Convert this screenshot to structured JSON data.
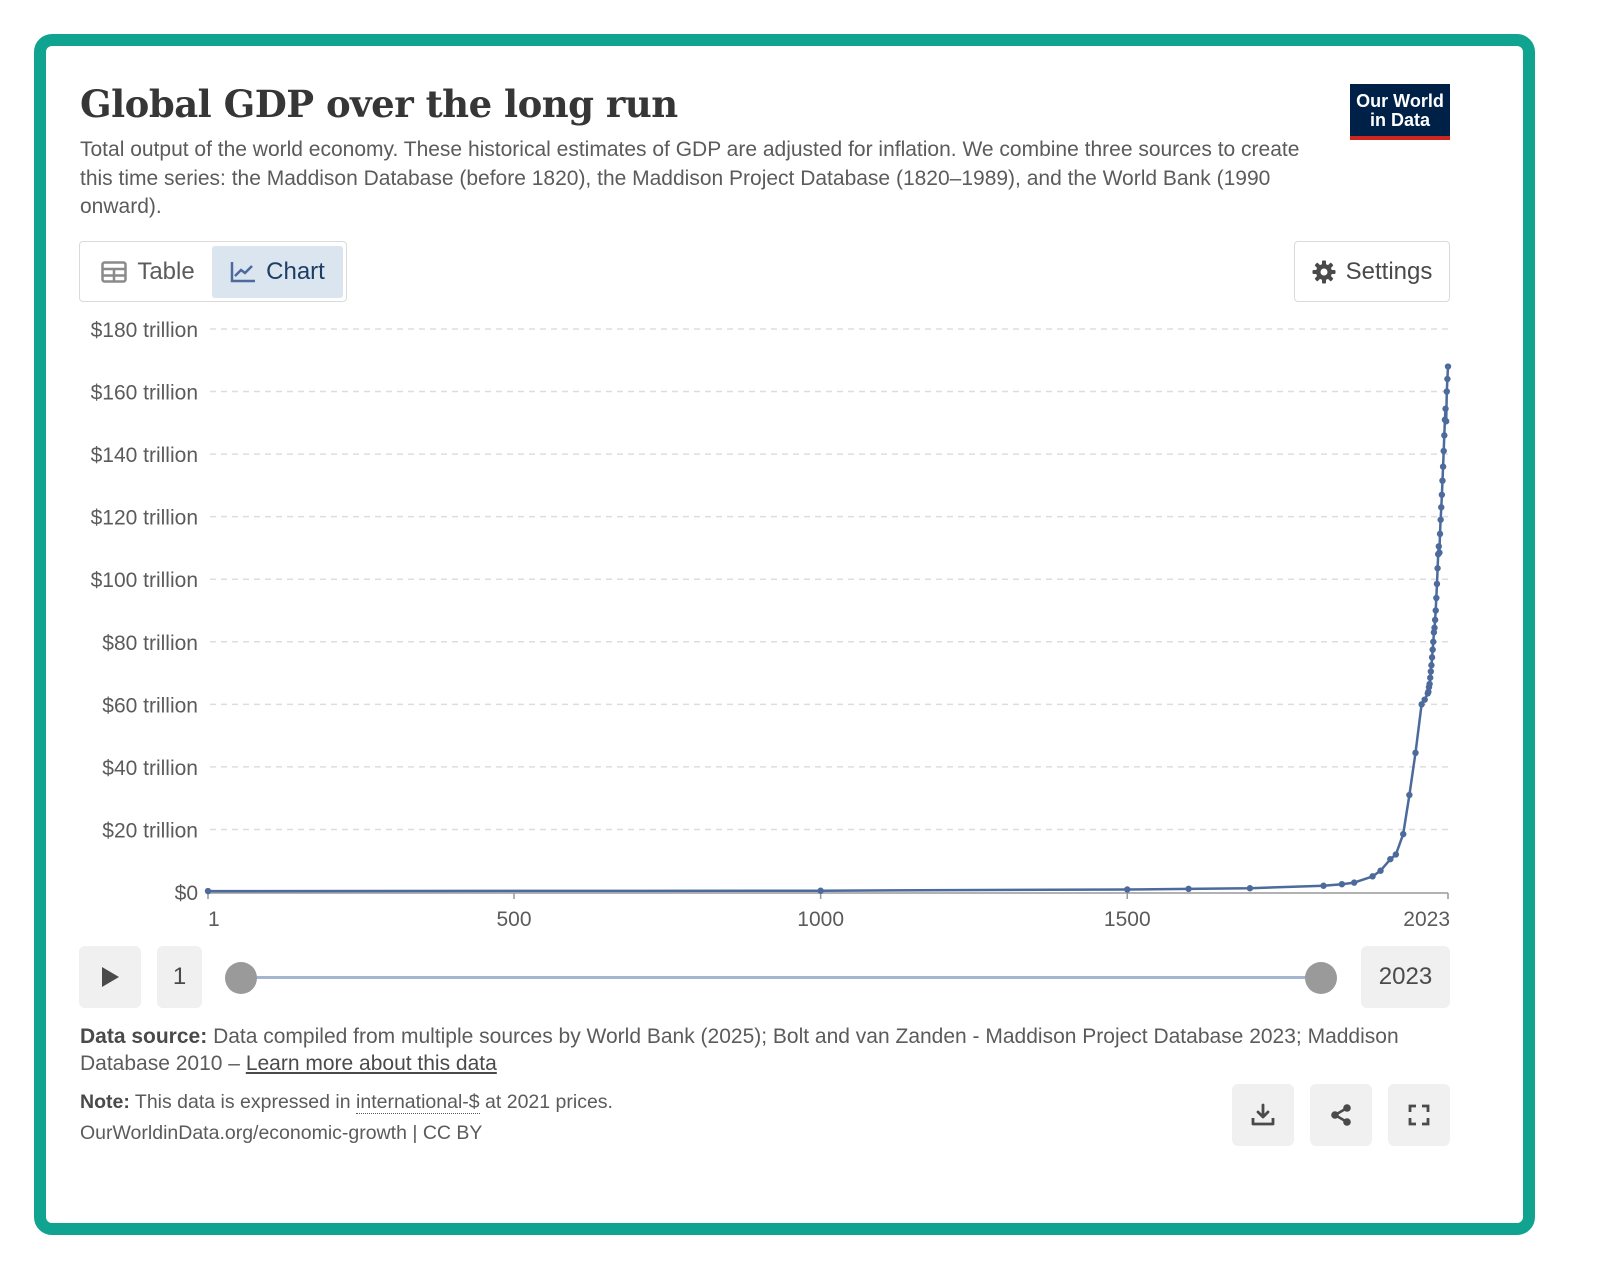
{
  "header": {
    "title": "Global GDP over the long run",
    "subtitle": "Total output of the world economy. These historical estimates of GDP are adjusted for inflation. We combine three sources to create this time series: the Maddison Database (before 1820), the Maddison Project Database (1820–1989), and the World Bank (1990 onward).",
    "logo_line1": "Our World",
    "logo_line2": "in Data"
  },
  "tabs": [
    {
      "label": "Table",
      "icon": "table-icon",
      "active": false
    },
    {
      "label": "Chart",
      "icon": "line-chart-icon",
      "active": true
    }
  ],
  "settings_label": "Settings",
  "timeline": {
    "start_label": "1",
    "end_label": "2023",
    "play_icon": "play-icon"
  },
  "footer": {
    "source_prefix": "Data source:",
    "source_text": "Data compiled from multiple sources by World Bank (2025); Bolt and van Zanden - Maddison Project Database 2023; Maddison Database 2010 –",
    "source_link": "Learn more about this data",
    "note_prefix": "Note:",
    "note_text_before": "This data is expressed in",
    "note_link": "international-$",
    "note_text_after": "at 2021 prices.",
    "url": "OurWorldinData.org/economic-growth | CC BY",
    "actions": [
      "download-icon",
      "share-icon",
      "fullscreen-icon"
    ]
  },
  "colors": {
    "frame": "#10a38f",
    "line": "#4c6a9c",
    "logo_bg": "#002147",
    "logo_accent": "#ce261e"
  },
  "chart_data": {
    "type": "line",
    "title": "Global GDP over the long run",
    "xlabel": "",
    "ylabel": "",
    "xlim": [
      1,
      2023
    ],
    "ylim": [
      0,
      180
    ],
    "x_ticks": [
      1,
      500,
      1000,
      1500,
      2023
    ],
    "y_ticks": [
      0,
      20,
      40,
      60,
      80,
      100,
      120,
      140,
      160,
      180
    ],
    "y_tick_labels": [
      "$0",
      "$20 trillion",
      "$40 trillion",
      "$60 trillion",
      "$80 trillion",
      "$100 trillion",
      "$120 trillion",
      "$140 trillion",
      "$160 trillion",
      "$180 trillion"
    ],
    "grid": "horizontal-dashed",
    "series": [
      {
        "x": [
          1,
          1000,
          1500,
          1600,
          1700,
          1820,
          1850,
          1870,
          1900,
          1913,
          1929,
          1938,
          1950,
          1960,
          1970,
          1980,
          1985,
          1990,
          1991,
          1992,
          1993,
          1994,
          1995,
          1996,
          1997,
          1998,
          1999,
          2000,
          2001,
          2002,
          2003,
          2004,
          2005,
          2006,
          2007,
          2008,
          2009,
          2010,
          2011,
          2012,
          2013,
          2014,
          2015,
          2016,
          2017,
          2018,
          2019,
          2020,
          2021,
          2022,
          2023
        ],
        "values": [
          0.3,
          0.4,
          0.8,
          1.0,
          1.2,
          2.0,
          2.5,
          3.0,
          5.0,
          6.8,
          10.5,
          12.0,
          18.5,
          31.0,
          44.5,
          60.0,
          61.5,
          63.5,
          64.0,
          65.5,
          66.5,
          68.5,
          70.5,
          72.5,
          75.0,
          77.5,
          80.0,
          83.0,
          84.5,
          87.0,
          90.0,
          94.0,
          98.5,
          103.5,
          108.0,
          110.5,
          108.5,
          114.5,
          119.0,
          123.0,
          127.0,
          131.5,
          136.0,
          141.0,
          146.0,
          151.0,
          154.5,
          150.5,
          160.0,
          164.0,
          168.0
        ]
      }
    ]
  }
}
